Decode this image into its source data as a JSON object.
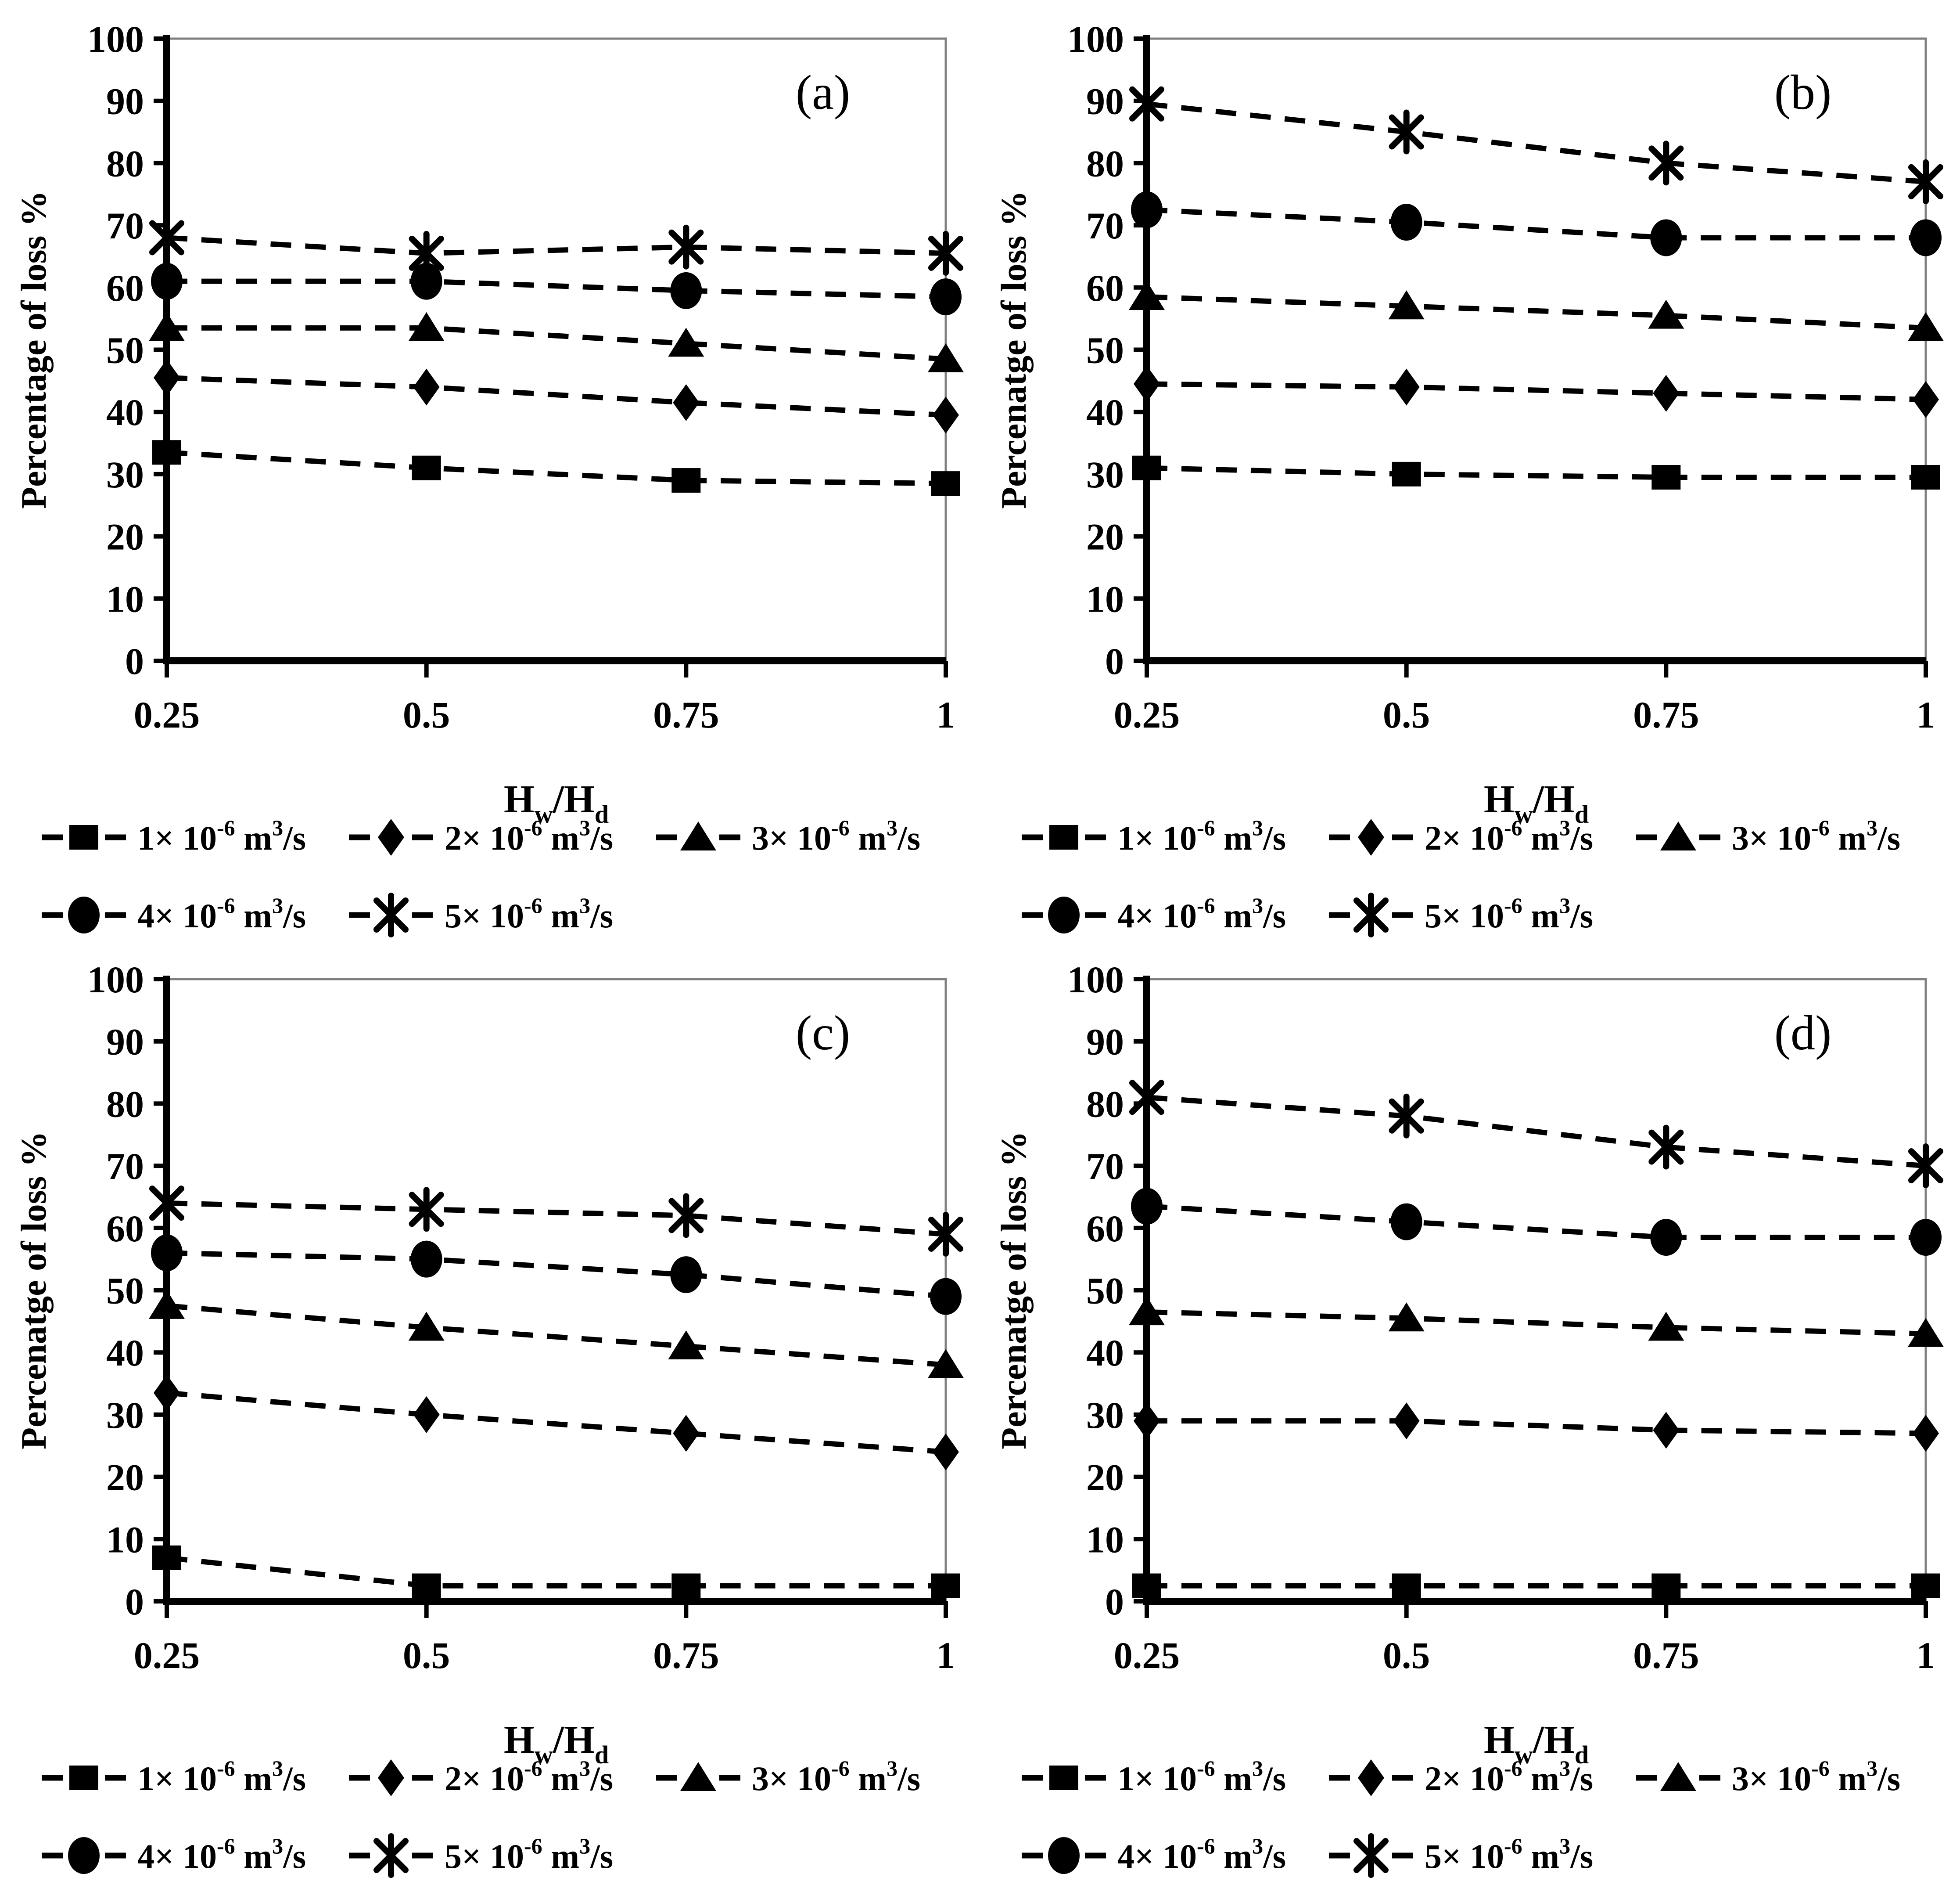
{
  "figure": {
    "background": "#ffffff",
    "text_color": "#000000",
    "axis_color": "#000000",
    "series_color": "#000000",
    "plot_border_color": "#7f7f7f"
  },
  "chart_data": [
    {
      "type": "line",
      "panel_label": "(a)",
      "title": "",
      "ylabel": "Percentage of loss %",
      "xlabel": "Hw/Hd",
      "xlabel_parts": {
        "h1": "H",
        "sub1": "w",
        "h2": "/H",
        "sub2": "d"
      },
      "xlim": [
        0.25,
        1
      ],
      "ylim": [
        0,
        100
      ],
      "x": [
        0.25,
        0.5,
        0.75,
        1
      ],
      "xtick_labels": [
        "0.25",
        "0.5",
        "0.75",
        "1"
      ],
      "yticks": [
        0,
        10,
        20,
        30,
        40,
        50,
        60,
        70,
        80,
        90,
        100
      ],
      "grid": false,
      "legend_position": "below",
      "legend_rows": [
        [
          0,
          1,
          2
        ],
        [
          3,
          4
        ]
      ],
      "series": [
        {
          "name": "1× 10⁻⁶ m³/s",
          "marker": "square",
          "label": {
            "base": "1× 10",
            "exp": "-6",
            "unit": " m",
            "uexp": "3",
            "tail": "/s"
          },
          "values": [
            33.5,
            31,
            29,
            28.5
          ]
        },
        {
          "name": "2× 10⁻⁶ m³/s",
          "marker": "diamond",
          "label": {
            "base": "2× 10",
            "exp": "-6",
            "unit": " m",
            "uexp": "3",
            "tail": "/s"
          },
          "values": [
            45.5,
            44,
            41.5,
            39.5
          ]
        },
        {
          "name": "3× 10⁻⁶ m³/s",
          "marker": "triangle",
          "label": {
            "base": "3× 10",
            "exp": "-6",
            "unit": " m",
            "uexp": "3",
            "tail": "/s"
          },
          "values": [
            53.5,
            53.5,
            51,
            48.5
          ]
        },
        {
          "name": "4× 10⁻⁶ m³/s",
          "marker": "circle",
          "label": {
            "base": "4× 10",
            "exp": "-6",
            "unit": " m",
            "uexp": "3",
            "tail": "/s"
          },
          "values": [
            61,
            61,
            59.5,
            58.5
          ]
        },
        {
          "name": "5× 10⁻⁶ m³/s",
          "marker": "star",
          "label": {
            "base": "5× 10",
            "exp": "-6",
            "unit": " m",
            "uexp": "3",
            "tail": "/s"
          },
          "values": [
            68,
            65.5,
            66.5,
            65.5
          ]
        }
      ]
    },
    {
      "type": "line",
      "panel_label": "(b)",
      "title": "",
      "ylabel": "Percenatge of loss %",
      "xlabel": "Hw/Hd",
      "xlabel_parts": {
        "h1": "H",
        "sub1": "w",
        "h2": "/H",
        "sub2": "d"
      },
      "xlim": [
        0.25,
        1
      ],
      "ylim": [
        0,
        100
      ],
      "x": [
        0.25,
        0.5,
        0.75,
        1
      ],
      "xtick_labels": [
        "0.25",
        "0.5",
        "0.75",
        "1"
      ],
      "yticks": [
        0,
        10,
        20,
        30,
        40,
        50,
        60,
        70,
        80,
        90,
        100
      ],
      "grid": false,
      "legend_position": "below",
      "legend_rows": [
        [
          0,
          1,
          2
        ],
        [
          3,
          4
        ]
      ],
      "series": [
        {
          "name": "1× 10⁻⁶ m³/s",
          "marker": "square",
          "label": {
            "base": "1× 10",
            "exp": "-6",
            "unit": " m",
            "uexp": "3",
            "tail": "/s"
          },
          "values": [
            31,
            30,
            29.5,
            29.5
          ]
        },
        {
          "name": "2× 10⁻⁶ m³/s",
          "marker": "diamond",
          "label": {
            "base": "2× 10",
            "exp": "-6",
            "unit": " m",
            "uexp": "3",
            "tail": "/s"
          },
          "values": [
            44.5,
            44,
            43,
            42
          ]
        },
        {
          "name": "3× 10⁻⁶ m³/s",
          "marker": "triangle",
          "label": {
            "base": "3× 10",
            "exp": "-6",
            "unit": " m",
            "uexp": "3",
            "tail": "/s"
          },
          "values": [
            58.5,
            57,
            55.5,
            53.5
          ]
        },
        {
          "name": "4× 10⁻⁶ m³/s",
          "marker": "circle",
          "label": {
            "base": "4× 10",
            "exp": "-6",
            "unit": " m",
            "uexp": "3",
            "tail": "/s"
          },
          "values": [
            72.5,
            70.5,
            68,
            68
          ]
        },
        {
          "name": "5× 10⁻⁶ m³/s",
          "marker": "star",
          "label": {
            "base": "5× 10",
            "exp": "-6",
            "unit": " m",
            "uexp": "3",
            "tail": "/s"
          },
          "values": [
            89.5,
            85,
            80,
            77
          ]
        }
      ]
    },
    {
      "type": "line",
      "panel_label": "(c)",
      "title": "",
      "ylabel": "Percenatge of loss %",
      "xlabel": "Hw/Hd",
      "xlabel_parts": {
        "h1": "H",
        "sub1": "w",
        "h2": "/H",
        "sub2": "d"
      },
      "xlim": [
        0.25,
        1
      ],
      "ylim": [
        0,
        100
      ],
      "x": [
        0.25,
        0.5,
        0.75,
        1
      ],
      "xtick_labels": [
        "0.25",
        "0.5",
        "0.75",
        "1"
      ],
      "yticks": [
        0,
        10,
        20,
        30,
        40,
        50,
        60,
        70,
        80,
        90,
        100
      ],
      "grid": false,
      "legend_position": "below",
      "legend_rows": [
        [
          0,
          1,
          2
        ],
        [
          3,
          4
        ]
      ],
      "series": [
        {
          "name": "1× 10⁻⁶ m³/s",
          "marker": "square",
          "label": {
            "base": "1× 10",
            "exp": "-6",
            "unit": " m",
            "uexp": "3",
            "tail": "/s"
          },
          "values": [
            7,
            2.5,
            2.5,
            2.5
          ]
        },
        {
          "name": "2× 10⁻⁶ m³/s",
          "marker": "diamond",
          "label": {
            "base": "2× 10",
            "exp": "-6",
            "unit": " m",
            "uexp": "3",
            "tail": "/s"
          },
          "values": [
            33.5,
            30,
            27,
            24
          ]
        },
        {
          "name": "3× 10⁻⁶ m³/s",
          "marker": "triangle",
          "label": {
            "base": "3× 10",
            "exp": "-6",
            "unit": " m",
            "uexp": "3",
            "tail": "/s"
          },
          "values": [
            47.5,
            44,
            41,
            38
          ]
        },
        {
          "name": "4× 10⁻⁶ m³/s",
          "marker": "circle",
          "label": {
            "base": "4× 10",
            "exp": "-6",
            "unit": " m",
            "uexp": "3",
            "tail": "/s"
          },
          "values": [
            56,
            55,
            52.5,
            49
          ]
        },
        {
          "name": "5× 10⁻⁶ m³/s",
          "marker": "star",
          "label": {
            "base": "5× 10",
            "exp": "-6",
            "unit": " m",
            "uexp": "3",
            "tail": "/s"
          },
          "values": [
            64,
            63,
            62,
            59
          ]
        }
      ]
    },
    {
      "type": "line",
      "panel_label": "(d)",
      "title": "",
      "ylabel": "Percenatge of loss %",
      "xlabel": "Hw/Hd",
      "xlabel_parts": {
        "h1": "H",
        "sub1": "w",
        "h2": "/H",
        "sub2": "d"
      },
      "xlim": [
        0.25,
        1
      ],
      "ylim": [
        0,
        100
      ],
      "x": [
        0.25,
        0.5,
        0.75,
        1
      ],
      "xtick_labels": [
        "0.25",
        "0.5",
        "0.75",
        "1"
      ],
      "yticks": [
        0,
        10,
        20,
        30,
        40,
        50,
        60,
        70,
        80,
        90,
        100
      ],
      "grid": false,
      "legend_position": "below",
      "legend_rows": [
        [
          0,
          1,
          2
        ],
        [
          3,
          4
        ]
      ],
      "series": [
        {
          "name": "1× 10⁻⁶ m³/s",
          "marker": "square",
          "label": {
            "base": "1× 10",
            "exp": "-6",
            "unit": " m",
            "uexp": "3",
            "tail": "/s"
          },
          "values": [
            2.5,
            2.5,
            2.5,
            2.5
          ]
        },
        {
          "name": "2× 10⁻⁶ m³/s",
          "marker": "diamond",
          "label": {
            "base": "2× 10",
            "exp": "-6",
            "unit": " m",
            "uexp": "3",
            "tail": "/s"
          },
          "values": [
            29,
            29,
            27.5,
            27
          ]
        },
        {
          "name": "3× 10⁻⁶ m³/s",
          "marker": "triangle",
          "label": {
            "base": "3× 10",
            "exp": "-6",
            "unit": " m",
            "uexp": "3",
            "tail": "/s"
          },
          "values": [
            46.5,
            45.5,
            44,
            43
          ]
        },
        {
          "name": "4× 10⁻⁶ m³/s",
          "marker": "circle",
          "label": {
            "base": "4× 10",
            "exp": "-6",
            "unit": " m",
            "uexp": "3",
            "tail": "/s"
          },
          "values": [
            63.5,
            61,
            58.5,
            58.5
          ]
        },
        {
          "name": "5× 10⁻⁶ m³/s",
          "marker": "star",
          "label": {
            "base": "5× 10",
            "exp": "-6",
            "unit": " m",
            "uexp": "3",
            "tail": "/s"
          },
          "values": [
            81,
            78,
            73,
            70
          ]
        }
      ]
    }
  ]
}
